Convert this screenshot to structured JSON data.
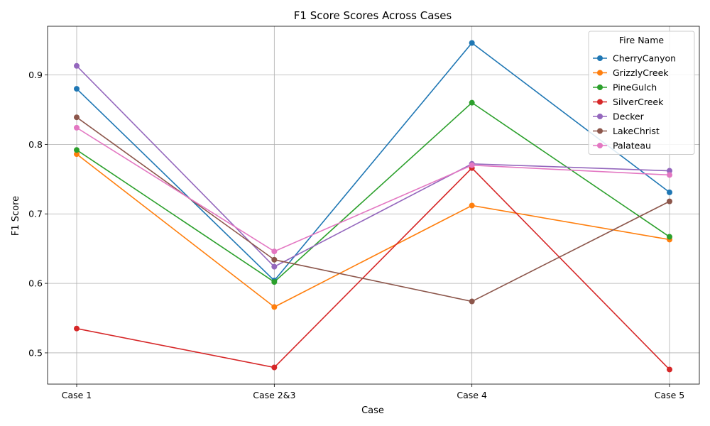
{
  "chart_data": {
    "type": "line",
    "title": "F1 Score Scores Across Cases",
    "xlabel": "Case",
    "ylabel": "F1 Score",
    "categories": [
      "Case 1",
      "Case 2&3",
      "Case 4",
      "Case 5"
    ],
    "ylim": [
      0.455,
      0.97
    ],
    "yticks": [
      0.5,
      0.6,
      0.7,
      0.8,
      0.9
    ],
    "ytick_labels": [
      "0.5",
      "0.6",
      "0.7",
      "0.8",
      "0.9"
    ],
    "grid": true,
    "legend": {
      "title": "Fire Name",
      "placement": "top-right"
    },
    "series": [
      {
        "name": "CherryCanyon",
        "color": "#1f77b4",
        "values": [
          0.88,
          0.604,
          0.946,
          0.731
        ]
      },
      {
        "name": "GrizzlyCreek",
        "color": "#ff7f0e",
        "values": [
          0.786,
          0.566,
          0.712,
          0.663
        ]
      },
      {
        "name": "PineGulch",
        "color": "#2ca02c",
        "values": [
          0.792,
          0.602,
          0.86,
          0.667
        ]
      },
      {
        "name": "SilverCreek",
        "color": "#d62728",
        "values": [
          0.535,
          0.479,
          0.766,
          0.476
        ]
      },
      {
        "name": "Decker",
        "color": "#9467bd",
        "values": [
          0.913,
          0.624,
          0.772,
          0.762
        ]
      },
      {
        "name": "LakeChrist",
        "color": "#8c564b",
        "values": [
          0.839,
          0.634,
          0.574,
          0.718
        ]
      },
      {
        "name": "Palateau",
        "color": "#e377c2",
        "values": [
          0.824,
          0.646,
          0.77,
          0.756
        ]
      }
    ]
  }
}
